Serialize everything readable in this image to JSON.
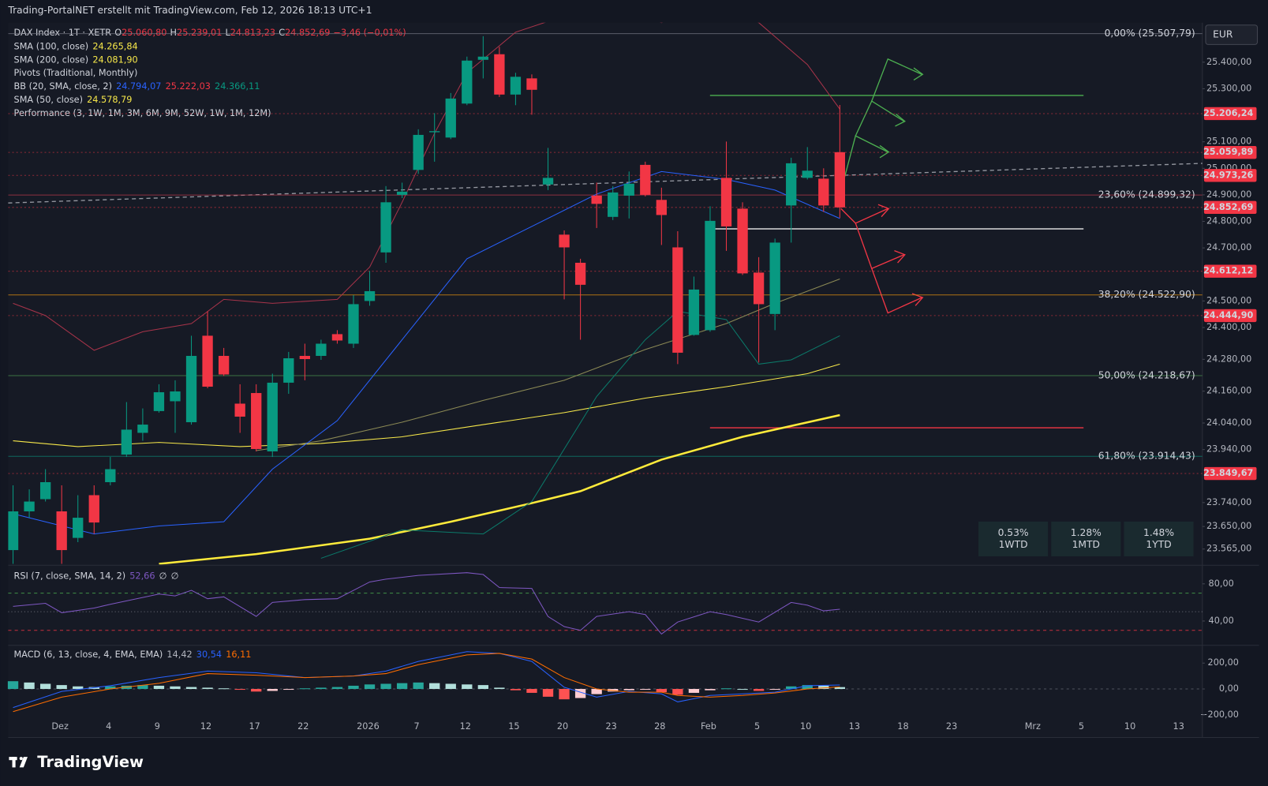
{
  "header": {
    "title": "Trading-PortalNET erstellt mit TradingView.com, Feb 12, 2026 18:13 UTC+1",
    "currency": "EUR",
    "logo": "TradingView"
  },
  "legend": {
    "symbol": "DAX Index · 1T · XETR",
    "ohlc": [
      {
        "key": "O",
        "value": "25.060,80"
      },
      {
        "key": "H",
        "value": "25.239,01"
      },
      {
        "key": "L",
        "value": "24.813,23"
      },
      {
        "key": "C",
        "value": "24.852,69"
      }
    ],
    "change": "−3,46 (−0,01%)",
    "indicators": [
      {
        "name": "SMA (100, close)",
        "readouts": [
          "24.265,84"
        ],
        "colors": [
          "#f7e84a"
        ]
      },
      {
        "name": "SMA (200, close)",
        "readouts": [
          "24.081,90"
        ],
        "colors": [
          "#f7e84a"
        ]
      },
      {
        "name": "Pivots (Traditional, Monthly)",
        "readouts": [],
        "colors": []
      },
      {
        "name": "BB (20, SMA, close, 2)",
        "readouts": [
          "24.794,07",
          "25.222,03",
          "24.366,11"
        ],
        "colors": [
          "#2962ff",
          "#f23645",
          "#089981"
        ]
      },
      {
        "name": "SMA (50, close)",
        "readouts": [
          "24.578,79"
        ],
        "colors": [
          "#f7e84a"
        ]
      },
      {
        "name": "Performance (3, 1W, 1M, 3M, 6M, 9M, 52W, 1W, 1M, 12M)",
        "readouts": [],
        "colors": []
      }
    ]
  },
  "chart_data": [
    {
      "type": "candlestick",
      "up_color": "#089981",
      "down_color": "#f23645",
      "categories": [
        null,
        null,
        null,
        "Dez",
        null,
        null,
        "4",
        null,
        null,
        "9",
        null,
        null,
        "12",
        null,
        null,
        "17",
        null,
        null,
        "22",
        null,
        null,
        null,
        "2026",
        null,
        null,
        "7",
        null,
        null,
        "12",
        null,
        null,
        "15",
        null,
        null,
        "20",
        null,
        null,
        "23",
        null,
        null,
        "28",
        null,
        null,
        "Feb",
        null,
        null,
        "5",
        null,
        null,
        "10",
        null,
        null,
        "13",
        null,
        null,
        "18",
        null,
        null,
        "23",
        null,
        null,
        null,
        null,
        "Mrz",
        null,
        null,
        "5",
        null,
        null,
        "10",
        null,
        null,
        "13"
      ],
      "open": [
        23561,
        23707,
        23753,
        23707,
        23607,
        23768,
        23817,
        23921,
        24003,
        24085,
        24122,
        24043,
        24369,
        24293,
        24113,
        24153,
        23933,
        24192,
        24293,
        24293,
        24375,
        24339,
        24500,
        24683,
        24900,
        24994,
        25136,
        25116,
        25244,
        25409,
        25430,
        25278,
        25339,
        24939,
        24750,
        24644,
        24897,
        24817,
        24897,
        25013,
        24881,
        24702,
        24372,
        24390,
        24964,
        24848,
        24607,
        24451,
        24860,
        24964,
        24961,
        25060.8,
        null,
        null,
        null,
        null,
        null,
        null,
        null,
        null,
        null,
        null,
        null,
        null,
        null,
        null,
        null,
        null,
        null,
        null,
        null,
        null,
        null
      ],
      "high": [
        23805,
        23790,
        23866,
        23805,
        23768,
        23805,
        23912,
        24119,
        24095,
        24186,
        24201,
        24369,
        24461,
        24323,
        24186,
        24186,
        24226,
        24308,
        24339,
        24354,
        24390,
        24522,
        24613,
        24933,
        24946,
        25147,
        25208,
        25284,
        25421,
        25498,
        25458,
        25360,
        25354,
        25077,
        24766,
        24659,
        24946,
        24933,
        24988,
        25025,
        24927,
        24763,
        24592,
        24857,
        25101,
        24872,
        24665,
        24735,
        25040,
        25080,
        25000,
        25239.01,
        null,
        null,
        null,
        null,
        null,
        null,
        null,
        null,
        null,
        null,
        null,
        null,
        null,
        null,
        null,
        null,
        null,
        null,
        null,
        null,
        null
      ],
      "low": [
        23509,
        23683,
        23744,
        23509,
        23591,
        23622,
        23805,
        23912,
        23973,
        24079,
        24003,
        24034,
        24171,
        24217,
        24003,
        23933,
        23912,
        24150,
        24201,
        24278,
        24339,
        24323,
        24482,
        24644,
        24888,
        24979,
        25025,
        25110,
        25238,
        25339,
        25269,
        25238,
        25202,
        24918,
        24506,
        24354,
        24775,
        24805,
        24811,
        24894,
        24711,
        24262,
        24369,
        24384,
        24689,
        24598,
        24268,
        24390,
        24720,
        24958,
        24836,
        24813.23,
        null,
        null,
        null,
        null,
        null,
        null,
        null,
        null,
        null,
        null,
        null,
        null,
        null,
        null,
        null,
        null,
        null,
        null,
        null,
        null,
        null
      ],
      "close": [
        23707,
        23744,
        23817,
        23561,
        23683,
        23665,
        23866,
        24015,
        24034,
        24156,
        24159,
        24293,
        24177,
        24223,
        24064,
        23942,
        24192,
        24284,
        24281,
        24339,
        24351,
        24488,
        24537,
        24872,
        24912,
        25126,
        25140,
        25263,
        25406,
        25421,
        25278,
        25345,
        25296,
        24964,
        24702,
        24561,
        24866,
        24909,
        24942,
        24900,
        24824,
        24305,
        24543,
        24802,
        24781,
        24604,
        24488,
        24720,
        25019,
        24991,
        24860,
        24852.69,
        null,
        null,
        null,
        null,
        null,
        null,
        null,
        null,
        null,
        null,
        null,
        null,
        null,
        null,
        null,
        null,
        null,
        null,
        null,
        null,
        null
      ],
      "series": [
        {
          "color": "#f7e84a",
          "width": 1,
          "x": [
            0,
            4,
            9,
            14,
            19,
            24,
            29,
            34,
            39,
            44,
            49,
            51
          ],
          "values": [
            23973,
            23951,
            23967,
            23951,
            23963,
            23988,
            24034,
            24079,
            24134,
            24177,
            24226,
            24262
          ]
        },
        {
          "color": "#ffeb3b",
          "width": 2.5,
          "x": [
            9,
            15,
            22,
            27,
            32,
            35,
            40,
            45,
            51
          ],
          "values": [
            23509,
            23546,
            23604,
            23668,
            23738,
            23783,
            23902,
            23988,
            24070
          ]
        },
        {
          "color": "#8c8a55",
          "width": 1,
          "x": [
            15,
            19,
            24,
            29,
            34,
            39,
            44,
            47,
            51
          ],
          "values": [
            23936,
            23973,
            24043,
            24125,
            24201,
            24317,
            24415,
            24491,
            24583
          ]
        },
        {
          "color": "#a8344a",
          "width": 1,
          "x": [
            0,
            2,
            5,
            8,
            11,
            13,
            16,
            20,
            22,
            24,
            26,
            28,
            31,
            34,
            37,
            40,
            43,
            46,
            49,
            51
          ],
          "values": [
            24491,
            24445,
            24314,
            24384,
            24415,
            24506,
            24491,
            24506,
            24628,
            24872,
            25132,
            25360,
            25513,
            25574,
            25604,
            25549,
            25620,
            25549,
            25391,
            25223
          ]
        },
        {
          "color": "#2962ff",
          "width": 1,
          "x": [
            0,
            5,
            9,
            13,
            16,
            20,
            24,
            28,
            32,
            36,
            40,
            44,
            47,
            51
          ],
          "values": [
            23698,
            23622,
            23652,
            23668,
            23866,
            24049,
            24354,
            24659,
            24781,
            24903,
            24988,
            24958,
            24918,
            24811
          ]
        },
        {
          "color": "#0b7a6a",
          "width": 1,
          "x": [
            19,
            24,
            29,
            32,
            36,
            39,
            41,
            44,
            46,
            48,
            51
          ],
          "values": [
            23530,
            23637,
            23622,
            23744,
            24140,
            24354,
            24461,
            24430,
            24262,
            24278,
            24369
          ]
        }
      ],
      "ylim": [
        23510,
        25543
      ],
      "yticks": [
        {
          "value": 25400,
          "label": "25.400,00"
        },
        {
          "value": 25300,
          "label": "25.300,00"
        },
        {
          "value": 25100,
          "label": "25.100,00"
        },
        {
          "value": 25000,
          "label": "25.000,00"
        },
        {
          "value": 24900,
          "label": "24.900,00"
        },
        {
          "value": 24800,
          "label": "24.800,00"
        },
        {
          "value": 24700,
          "label": "24.700,00"
        },
        {
          "value": 24500,
          "label": "24.500,00"
        },
        {
          "value": 24400,
          "label": "24.400,00"
        },
        {
          "value": 24280,
          "label": "24.280,00"
        },
        {
          "value": 24160,
          "label": "24.160,00"
        },
        {
          "value": 24040,
          "label": "24.040,00"
        },
        {
          "value": 23940,
          "label": "23.940,00"
        },
        {
          "value": 23740,
          "label": "23.740,00"
        },
        {
          "value": 23650,
          "label": "23.650,00"
        },
        {
          "value": 23565,
          "label": "23.565,00"
        }
      ],
      "grid": false,
      "levels": [
        {
          "value": 25507.79,
          "label": "0,00% (25.507,79)",
          "color": "#787b86"
        },
        {
          "value": 24899.32,
          "label": "23,60% (24.899,32)",
          "color": "#c0394b"
        },
        {
          "value": 24522.9,
          "label": "38,20% (24.522,90)",
          "color": "#d68910"
        },
        {
          "value": 24218.67,
          "label": "50,00% (24.218,67)",
          "color": "#4c9a4f"
        },
        {
          "value": 23914.43,
          "label": "61,80% (23.914,43)",
          "color": "#0b8a78"
        }
      ],
      "price_labels": [
        {
          "value": 25206.24,
          "label": "25.206,24",
          "color": "#f23645"
        },
        {
          "value": 25059.89,
          "label": "25.059,89",
          "color": "#f23645"
        },
        {
          "value": 24973.26,
          "label": "24.973,26",
          "color": "#f23645"
        },
        {
          "value": 24852.69,
          "label": "24.852,69",
          "color": "#f23645"
        },
        {
          "value": 24612.12,
          "label": "24.612,12",
          "color": "#f23645"
        },
        {
          "value": 24444.9,
          "label": "24.444,90",
          "color": "#f23645"
        },
        {
          "value": 23849.67,
          "label": "23.849,67",
          "color": "#f23645"
        }
      ],
      "performance": [
        {
          "value": "0.53%",
          "label": "1WTD"
        },
        {
          "value": "1.28%",
          "label": "1MTD"
        },
        {
          "value": "1.48%",
          "label": "1YTD"
        }
      ]
    },
    {
      "type": "line",
      "title": "RSI (7, close, SMA, 14, 2)",
      "readouts": [
        "52,66",
        "∅",
        "∅"
      ],
      "series": [
        {
          "color": "#7e57c2",
          "x": [
            0,
            2,
            3,
            5,
            6,
            9,
            10,
            11,
            12,
            13,
            15,
            16,
            18,
            20,
            21,
            22,
            23,
            25,
            28,
            29,
            30,
            32,
            33,
            34,
            35,
            36,
            38,
            39,
            40,
            41,
            43,
            44,
            46,
            48,
            49,
            50,
            51
          ],
          "values": [
            55.7,
            59,
            49,
            54,
            58,
            69,
            67,
            73,
            64,
            66,
            45,
            60,
            63,
            64,
            73,
            82,
            85,
            89,
            92,
            90,
            76,
            75,
            45,
            34,
            30,
            45,
            50,
            47,
            26,
            39,
            50,
            47,
            39,
            60,
            57,
            51,
            52.66
          ]
        }
      ],
      "levels": [
        70,
        50,
        30
      ],
      "ylim": [
        14.8,
        96.5
      ],
      "yticks": [
        {
          "value": 80,
          "label": "80,00"
        },
        {
          "value": 40,
          "label": "40,00"
        }
      ]
    },
    {
      "type": "macd",
      "title": "MACD (6, 13, close, 4, EMA, EMA)",
      "readouts": [
        "14,42",
        "30,54",
        "16,11"
      ],
      "readout_colors": [
        "#b2b5be",
        "#2962ff",
        "#ff6d00"
      ],
      "histogram": [
        60,
        50,
        40,
        30,
        20,
        15,
        20,
        25,
        30,
        25,
        20,
        15,
        10,
        5,
        -5,
        -20,
        -15,
        -5,
        5,
        10,
        15,
        25,
        35,
        40,
        45,
        50,
        45,
        40,
        35,
        30,
        10,
        -10,
        -30,
        -60,
        -80,
        -70,
        -40,
        -20,
        -10,
        -5,
        -25,
        -45,
        -30,
        -10,
        5,
        0,
        -15,
        -5,
        20,
        30,
        25,
        14.42
      ],
      "series": [
        {
          "color": "#2962ff",
          "x": [
            0,
            3,
            6,
            9,
            12,
            15,
            18,
            21,
            23,
            25,
            28,
            30,
            32,
            34,
            36,
            38,
            40,
            41,
            43,
            45,
            47,
            49,
            51
          ],
          "values": [
            -144,
            -19,
            25,
            88,
            138,
            125,
            88,
            100,
            138,
            213,
            288,
            275,
            213,
            13,
            -63,
            -19,
            -38,
            -100,
            -50,
            -38,
            -25,
            25,
            30.54
          ]
        },
        {
          "color": "#ff6d00",
          "x": [
            0,
            3,
            6,
            9,
            12,
            15,
            18,
            21,
            23,
            25,
            28,
            30,
            32,
            34,
            36,
            38,
            40,
            41,
            43,
            45,
            47,
            49,
            51
          ],
          "values": [
            -175,
            -63,
            0,
            44,
            119,
            106,
            88,
            100,
            119,
            188,
            263,
            275,
            231,
            88,
            0,
            -25,
            -25,
            -50,
            -63,
            -50,
            -31,
            0,
            16.11
          ]
        }
      ],
      "ylim": [
        -225,
        325
      ],
      "yticks": [
        {
          "value": 200,
          "label": "200,00"
        },
        {
          "value": 0,
          "label": "0,00"
        },
        {
          "value": -200,
          "label": "−200,00"
        }
      ]
    }
  ]
}
